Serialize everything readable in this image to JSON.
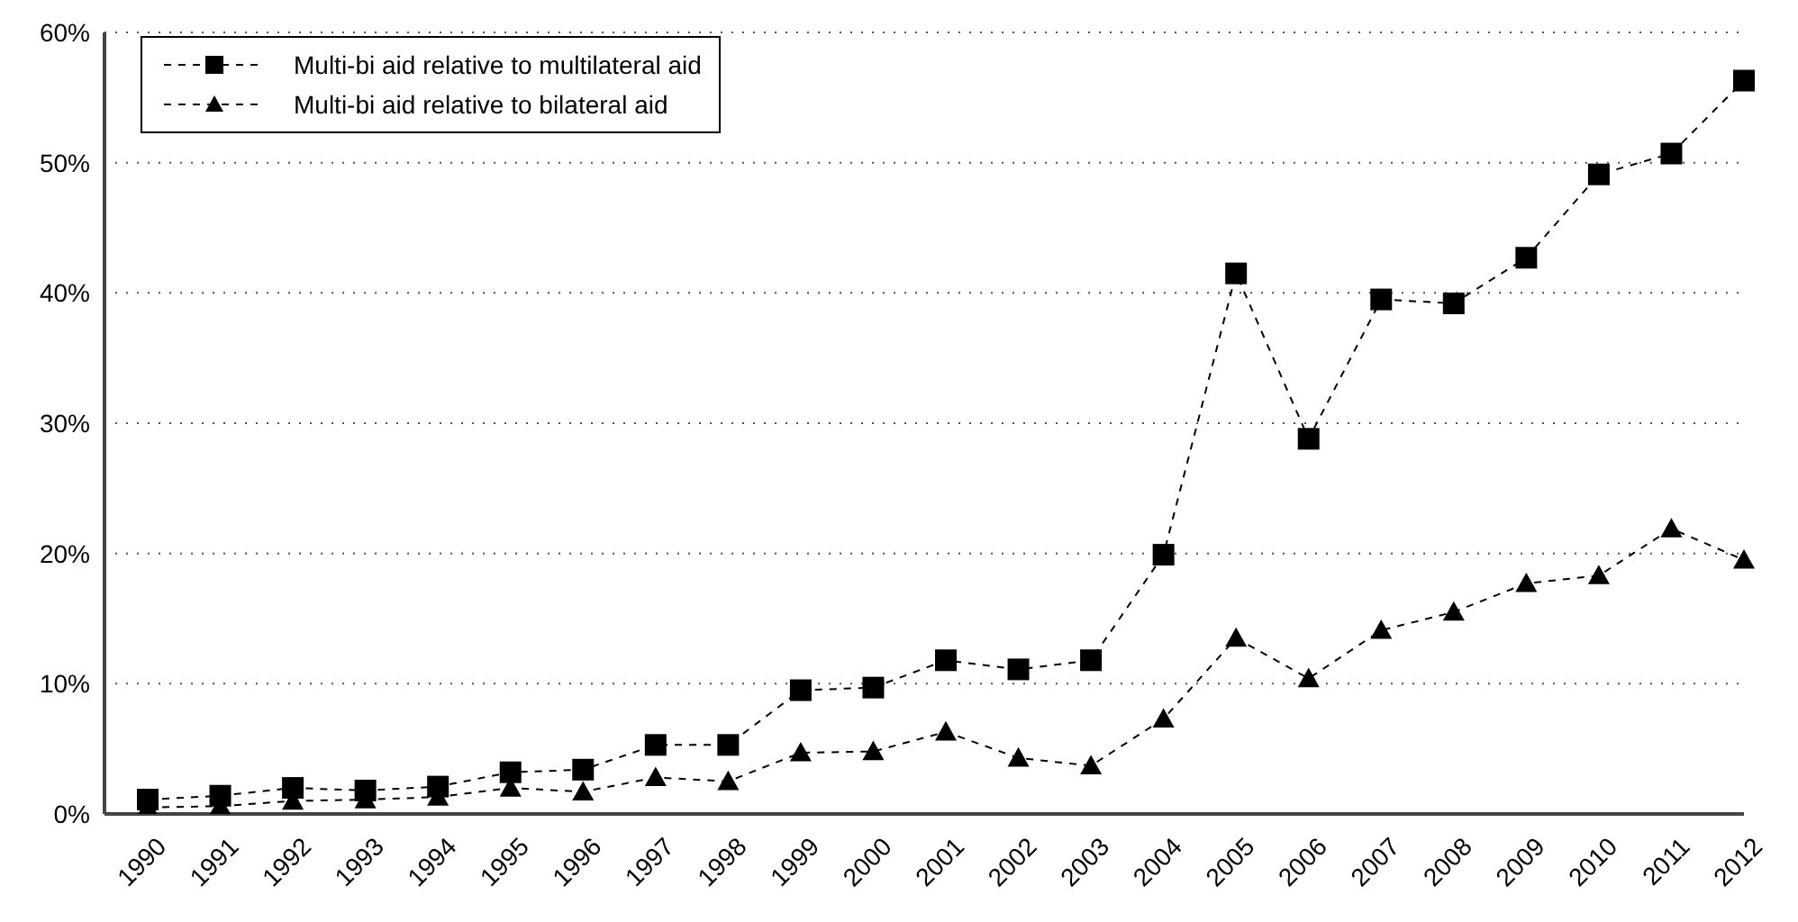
{
  "chart_data": {
    "type": "line",
    "categories": [
      "1990",
      "1991",
      "1992",
      "1993",
      "1994",
      "1995",
      "1996",
      "1997",
      "1998",
      "1999",
      "2000",
      "2001",
      "2002",
      "2003",
      "2004",
      "2005",
      "2006",
      "2007",
      "2008",
      "2009",
      "2010",
      "2011",
      "2012"
    ],
    "series": [
      {
        "name": "Multi-bi aid relative to multilateral aid",
        "color": "#000000",
        "marker": "square",
        "values": [
          1.1,
          1.4,
          2.0,
          1.8,
          2.1,
          3.2,
          3.4,
          5.3,
          5.3,
          9.5,
          9.7,
          11.8,
          11.1,
          11.8,
          19.9,
          41.5,
          28.8,
          39.5,
          39.2,
          42.7,
          49.1,
          50.7,
          56.3
        ]
      },
      {
        "name": "Multi-bi aid relative to bilateral aid",
        "color": "#000000",
        "marker": "triangle",
        "values": [
          0.5,
          0.6,
          1.0,
          1.1,
          1.3,
          2.0,
          1.7,
          2.8,
          2.5,
          4.7,
          4.8,
          6.3,
          4.3,
          3.7,
          7.3,
          13.5,
          10.4,
          14.1,
          15.5,
          17.7,
          18.3,
          21.9,
          19.5
        ]
      }
    ],
    "ylim": [
      0,
      60
    ],
    "yticks": [
      {
        "value": 0,
        "label": "0%"
      },
      {
        "value": 10,
        "label": "10%"
      },
      {
        "value": 20,
        "label": "20%"
      },
      {
        "value": 30,
        "label": "30%"
      },
      {
        "value": 40,
        "label": "40%"
      },
      {
        "value": 50,
        "label": "50%"
      },
      {
        "value": 60,
        "label": "60%"
      }
    ],
    "grid": "y",
    "legend": "top left",
    "line_style": "dashed"
  }
}
